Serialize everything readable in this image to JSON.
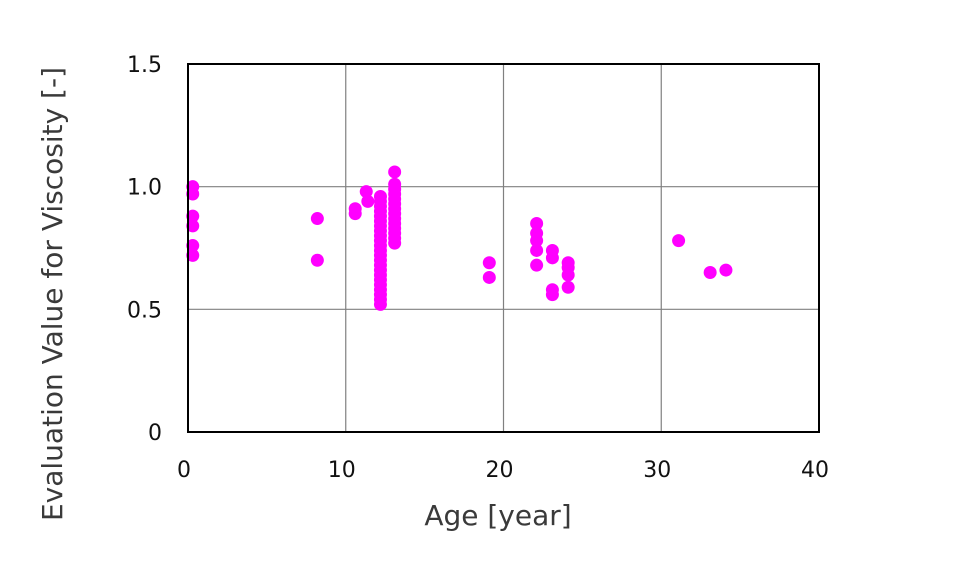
{
  "chart_data": {
    "type": "scatter",
    "title": "",
    "xlabel": "Age [year]",
    "ylabel": "Evaluation Value for Viscosity [-]",
    "xlim": [
      0,
      40
    ],
    "ylim": [
      0,
      1.5
    ],
    "x_ticks": [
      0,
      10,
      20,
      30,
      40
    ],
    "x_tick_labels": [
      "0",
      "10",
      "20",
      "30",
      "40"
    ],
    "y_ticks": [
      0,
      0.5,
      1.0,
      1.5
    ],
    "y_tick_labels": [
      "0",
      "0.5",
      "1.0",
      "1.5"
    ],
    "grid": true,
    "legend": "none",
    "marker_color": "#ff00ff",
    "grid_color": "#808080",
    "series": [
      {
        "points": [
          {
            "x": 0.3,
            "y": 1.0
          },
          {
            "x": 0.3,
            "y": 0.97
          },
          {
            "x": 0.3,
            "y": 0.88
          },
          {
            "x": 0.3,
            "y": 0.84
          },
          {
            "x": 0.3,
            "y": 0.76
          },
          {
            "x": 0.3,
            "y": 0.72
          },
          {
            "x": 8.2,
            "y": 0.87
          },
          {
            "x": 8.2,
            "y": 0.7
          },
          {
            "x": 10.6,
            "y": 0.91
          },
          {
            "x": 10.6,
            "y": 0.89
          },
          {
            "x": 11.3,
            "y": 0.98
          },
          {
            "x": 11.4,
            "y": 0.94
          },
          {
            "x": 12.2,
            "y": 0.96
          },
          {
            "x": 12.2,
            "y": 0.94
          },
          {
            "x": 12.2,
            "y": 0.92
          },
          {
            "x": 12.2,
            "y": 0.9
          },
          {
            "x": 12.2,
            "y": 0.88
          },
          {
            "x": 12.2,
            "y": 0.86
          },
          {
            "x": 12.2,
            "y": 0.84
          },
          {
            "x": 12.2,
            "y": 0.82
          },
          {
            "x": 12.2,
            "y": 0.8
          },
          {
            "x": 12.2,
            "y": 0.78
          },
          {
            "x": 12.2,
            "y": 0.76
          },
          {
            "x": 12.2,
            "y": 0.74
          },
          {
            "x": 12.2,
            "y": 0.72
          },
          {
            "x": 12.2,
            "y": 0.7
          },
          {
            "x": 12.2,
            "y": 0.68
          },
          {
            "x": 12.2,
            "y": 0.66
          },
          {
            "x": 12.2,
            "y": 0.64
          },
          {
            "x": 12.2,
            "y": 0.62
          },
          {
            "x": 12.2,
            "y": 0.6
          },
          {
            "x": 12.2,
            "y": 0.58
          },
          {
            "x": 12.2,
            "y": 0.56
          },
          {
            "x": 12.2,
            "y": 0.54
          },
          {
            "x": 12.2,
            "y": 0.52
          },
          {
            "x": 13.1,
            "y": 1.06
          },
          {
            "x": 13.1,
            "y": 1.01
          },
          {
            "x": 13.1,
            "y": 0.99
          },
          {
            "x": 13.1,
            "y": 0.97
          },
          {
            "x": 13.1,
            "y": 0.95
          },
          {
            "x": 13.1,
            "y": 0.93
          },
          {
            "x": 13.1,
            "y": 0.91
          },
          {
            "x": 13.1,
            "y": 0.89
          },
          {
            "x": 13.1,
            "y": 0.87
          },
          {
            "x": 13.1,
            "y": 0.85
          },
          {
            "x": 13.1,
            "y": 0.83
          },
          {
            "x": 13.1,
            "y": 0.81
          },
          {
            "x": 13.1,
            "y": 0.79
          },
          {
            "x": 13.1,
            "y": 0.77
          },
          {
            "x": 19.1,
            "y": 0.69
          },
          {
            "x": 19.1,
            "y": 0.63
          },
          {
            "x": 22.1,
            "y": 0.85
          },
          {
            "x": 22.1,
            "y": 0.81
          },
          {
            "x": 22.1,
            "y": 0.78
          },
          {
            "x": 22.1,
            "y": 0.74
          },
          {
            "x": 22.1,
            "y": 0.68
          },
          {
            "x": 23.1,
            "y": 0.74
          },
          {
            "x": 23.1,
            "y": 0.71
          },
          {
            "x": 23.1,
            "y": 0.58
          },
          {
            "x": 23.1,
            "y": 0.56
          },
          {
            "x": 24.1,
            "y": 0.69
          },
          {
            "x": 24.1,
            "y": 0.67
          },
          {
            "x": 24.1,
            "y": 0.64
          },
          {
            "x": 24.1,
            "y": 0.59
          },
          {
            "x": 31.1,
            "y": 0.78
          },
          {
            "x": 33.1,
            "y": 0.65
          },
          {
            "x": 34.1,
            "y": 0.66
          }
        ]
      }
    ]
  }
}
